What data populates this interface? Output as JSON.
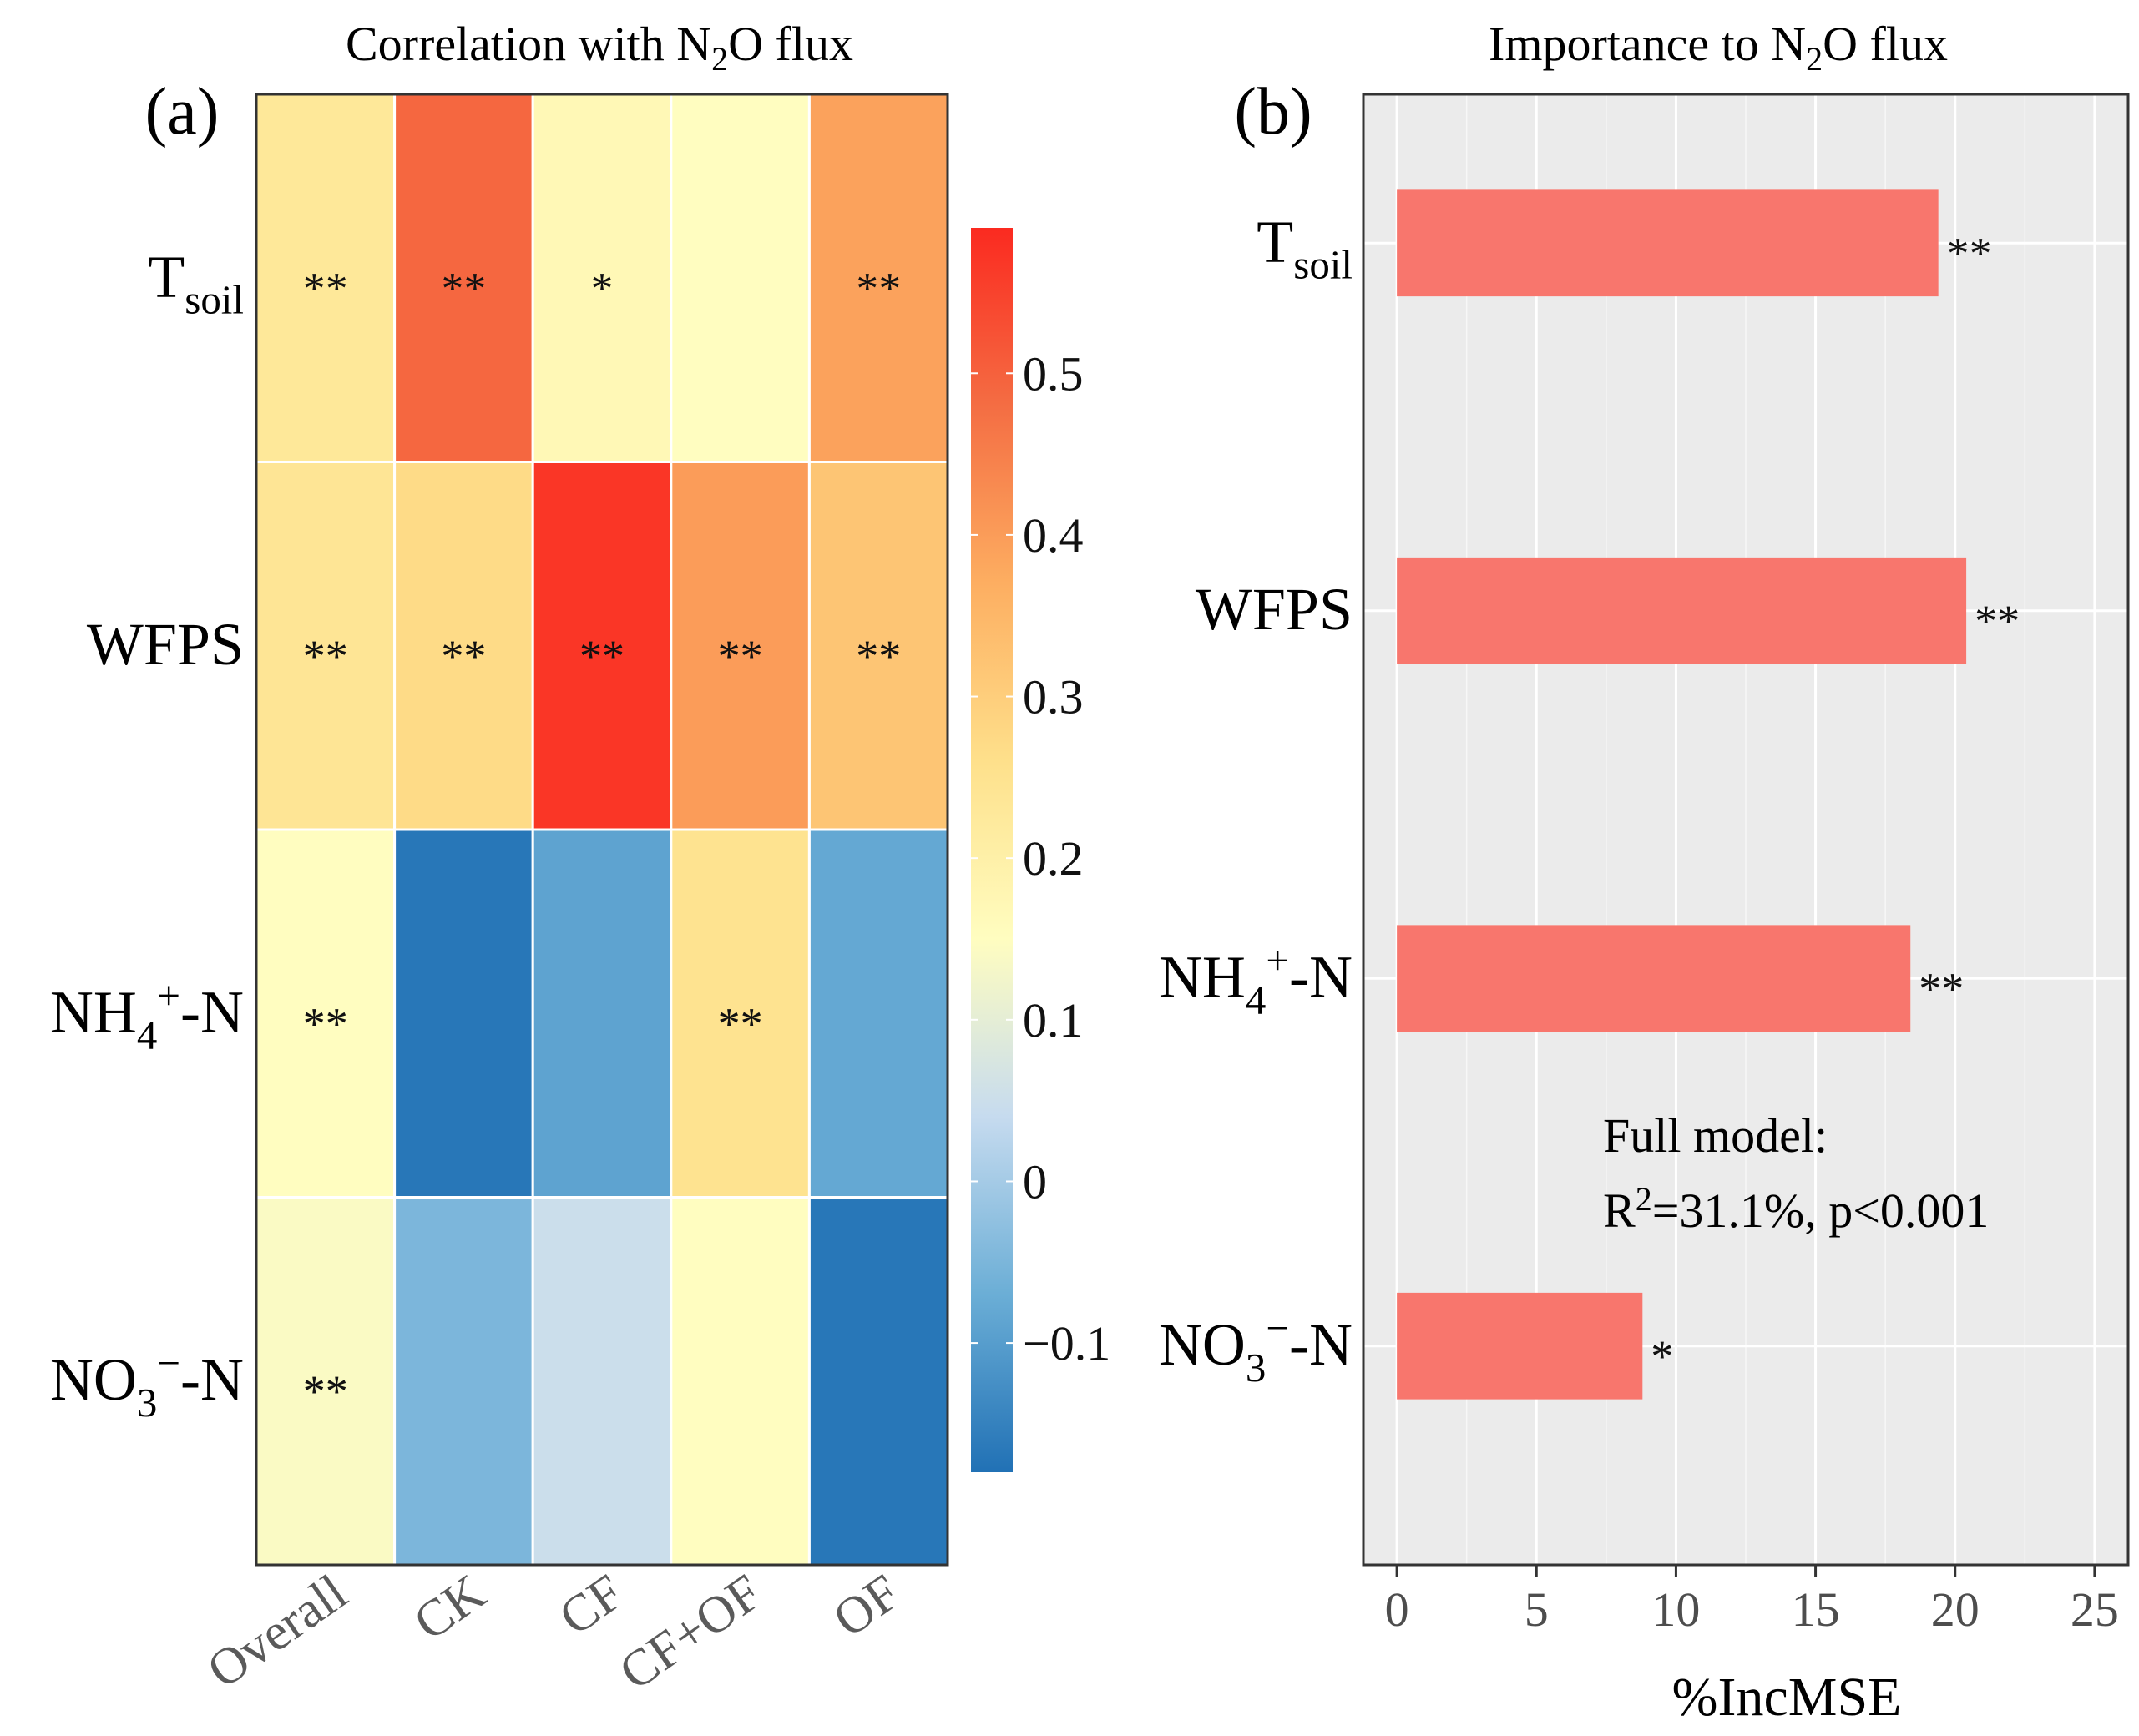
{
  "chart_data": [
    {
      "panel": "(a)",
      "type": "heatmap",
      "title": "Correlation with N₂O flux",
      "title_parts": [
        "Correlation with N",
        "2",
        "O flux"
      ],
      "rows": [
        {
          "id": "tsoil",
          "parts": [
            [
              "T",
              ""
            ],
            [
              "soil",
              "sub"
            ]
          ]
        },
        {
          "id": "wfps",
          "parts": [
            [
              "WFPS",
              ""
            ]
          ]
        },
        {
          "id": "nh4",
          "parts": [
            [
              "NH",
              ""
            ],
            [
              "4",
              "sub"
            ],
            [
              "+",
              "sup"
            ],
            [
              "-N",
              ""
            ]
          ]
        },
        {
          "id": "no3",
          "parts": [
            [
              "NO",
              ""
            ],
            [
              "3",
              "sub"
            ],
            [
              "−",
              "sup"
            ],
            [
              "-N",
              ""
            ]
          ]
        }
      ],
      "columns": [
        "Overall",
        "CK",
        "CF",
        "CF+OF",
        "OF"
      ],
      "values": [
        [
          0.23,
          0.49,
          0.17,
          0.15,
          0.39
        ],
        [
          0.24,
          0.27,
          0.57,
          0.4,
          0.32
        ],
        [
          0.15,
          -0.17,
          -0.09,
          0.25,
          -0.08
        ],
        [
          0.14,
          -0.05,
          0.05,
          0.15,
          -0.17
        ]
      ],
      "significance": [
        [
          "**",
          "**",
          "*",
          "",
          "**"
        ],
        [
          "**",
          "**",
          "**",
          "**",
          "**"
        ],
        [
          "**",
          "",
          "",
          "**",
          ""
        ],
        [
          "**",
          "",
          "",
          "",
          ""
        ]
      ],
      "colorbar": {
        "range": [
          -0.18,
          0.59
        ],
        "ticks": [
          -0.1,
          0,
          0.1,
          0.2,
          0.3,
          0.4,
          0.5
        ],
        "tick_labels": [
          "−0.1",
          "0",
          "0.1",
          "0.2",
          "0.3",
          "0.4",
          "0.5"
        ],
        "colors": [
          "#2171b5",
          "#6baed6",
          "#c6dbef",
          "#fffdc0",
          "#fee08b",
          "#fdae61",
          "#f46d43",
          "#fb2a20"
        ]
      }
    },
    {
      "panel": "(b)",
      "type": "bar",
      "orientation": "horizontal",
      "title": "Importance to N₂O flux",
      "title_parts": [
        "Importance to N",
        "2",
        "O flux"
      ],
      "categories": [
        "tsoil",
        "wfps",
        "nh4",
        "no3"
      ],
      "values": [
        19.4,
        20.4,
        18.4,
        8.8
      ],
      "significance": [
        "**",
        "**",
        "**",
        "*"
      ],
      "xlabel": "%IncMSE",
      "xlim": [
        -1.2,
        26.2
      ],
      "xticks": [
        0,
        5,
        10,
        15,
        20,
        25
      ],
      "bar_color": "#f8766d",
      "annotation_line1": "Full model:",
      "annotation_line2": [
        "R",
        "2",
        "=31.1%, p<0.001"
      ]
    }
  ]
}
